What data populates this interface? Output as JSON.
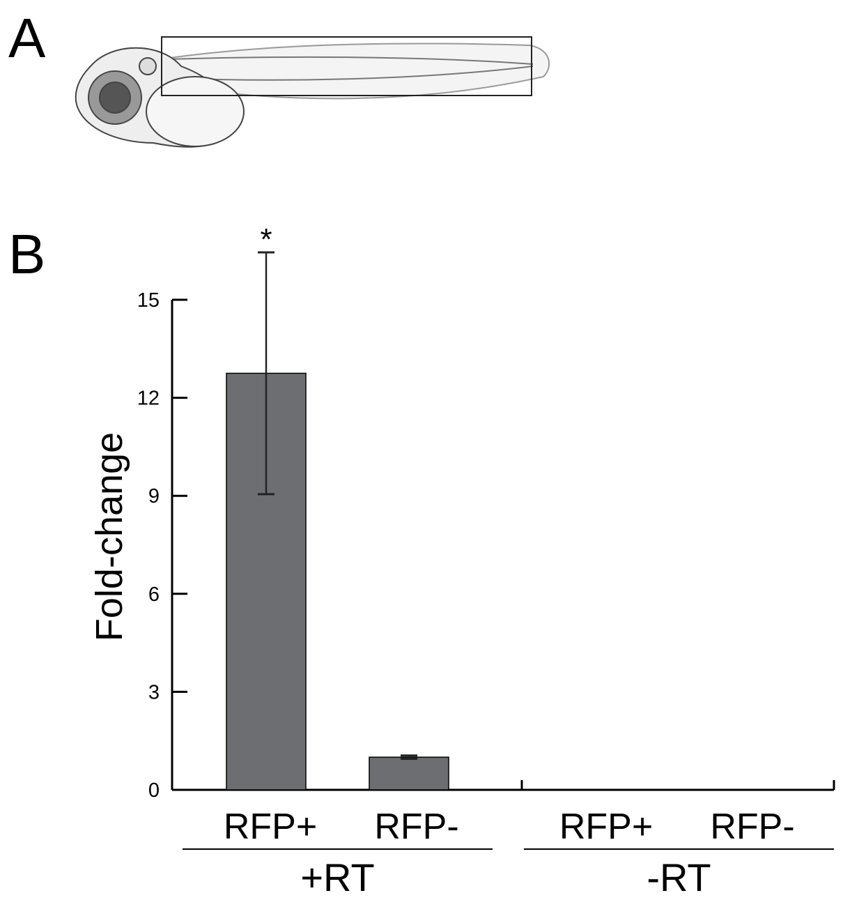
{
  "panel_labels": [
    "A",
    "B"
  ],
  "chart_data": {
    "type": "bar",
    "y_label": "Fold-change",
    "categories": [
      "RFP+",
      "RFP-",
      "RFP+",
      "RFP-"
    ],
    "groups": [
      "+RT",
      "-RT"
    ],
    "values": [
      12.75,
      1.0,
      0,
      0
    ],
    "errors": [
      3.7,
      0.05,
      0,
      0
    ],
    "color": "#6d6e72",
    "annotation": "*",
    "ylim": [
      0,
      15
    ],
    "yticks": [
      0,
      3,
      6,
      9,
      12,
      15
    ]
  }
}
